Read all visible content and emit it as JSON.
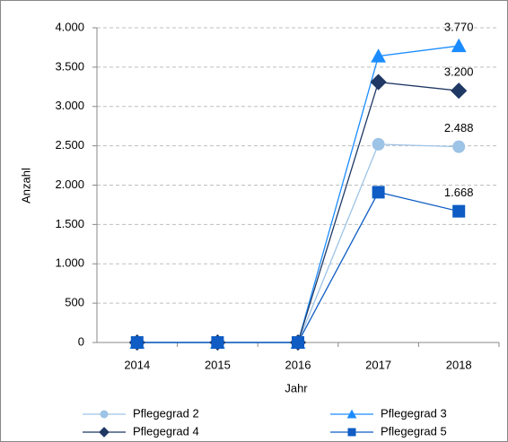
{
  "chart_data": {
    "type": "line",
    "x_label": "Jahr",
    "y_label": "Anzahl",
    "categories": [
      "2014",
      "2015",
      "2016",
      "2017",
      "2018"
    ],
    "series": [
      {
        "name": "Pflegegrad 2",
        "color": "#9dc3e6",
        "marker": "circle",
        "values": [
          0,
          0,
          0,
          2520,
          2488
        ],
        "value_labels": [
          null,
          null,
          null,
          null,
          "2.488"
        ]
      },
      {
        "name": "Pflegegrad 3",
        "color": "#1a8cff",
        "marker": "triangle",
        "values": [
          0,
          0,
          0,
          3640,
          3770
        ],
        "value_labels": [
          null,
          null,
          null,
          null,
          "3.770"
        ]
      },
      {
        "name": "Pflegegrad 4",
        "color": "#1f3864",
        "marker": "diamond",
        "values": [
          0,
          0,
          0,
          3310,
          3200
        ],
        "value_labels": [
          null,
          null,
          null,
          null,
          "3.200"
        ]
      },
      {
        "name": "Pflegegrad 5",
        "color": "#0e5cc4",
        "marker": "square",
        "values": [
          0,
          0,
          0,
          1910,
          1668
        ],
        "value_labels": [
          null,
          null,
          null,
          null,
          "1.668"
        ]
      }
    ],
    "ylim": [
      0,
      4000
    ],
    "yticks": [
      0,
      500,
      {
        "value": 1000,
        "label": "1.000"
      },
      {
        "value": 1500,
        "label": "1.500"
      },
      {
        "value": 2000,
        "label": "2.000"
      },
      {
        "value": 2500,
        "label": "2.500"
      },
      {
        "value": 3000,
        "label": "3.000"
      },
      {
        "value": 3500,
        "label": "3.500"
      },
      {
        "value": 4000,
        "label": "4.000"
      }
    ],
    "grid": true,
    "legend": "bottom"
  }
}
